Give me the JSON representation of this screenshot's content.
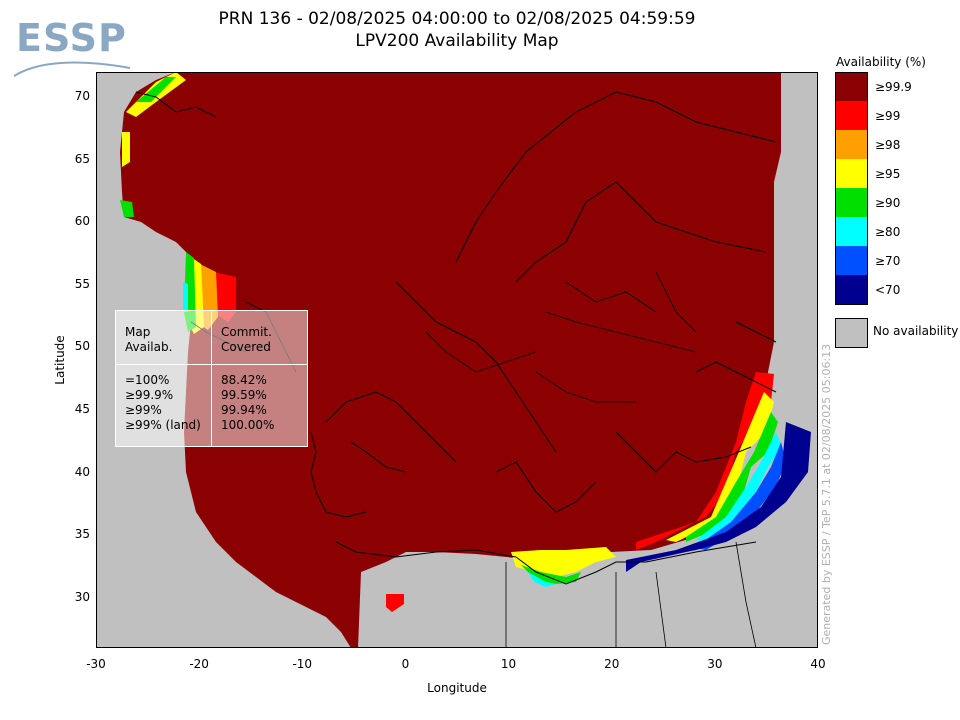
{
  "title_line1": "PRN 136 - 02/08/2025 04:00:00 to 02/08/2025 04:59:59",
  "title_line2": "LPV200 Availability Map",
  "logo_text": "ESSP",
  "axes": {
    "xlabel": "Longitude",
    "ylabel": "Latitude",
    "xticks": [
      "-30",
      "-20",
      "-10",
      "0",
      "10",
      "20",
      "30",
      "40"
    ],
    "yticks": [
      "70",
      "65",
      "60",
      "55",
      "50",
      "45",
      "40",
      "35",
      "30"
    ],
    "xlim": [
      -30,
      40
    ],
    "ylim": [
      26,
      72
    ]
  },
  "legend": {
    "title": "Availability (%)",
    "items": [
      {
        "label": "≥99.9",
        "color": "#8b0000"
      },
      {
        "label": "≥99",
        "color": "#ff0000"
      },
      {
        "label": "≥98",
        "color": "#ffa000"
      },
      {
        "label": "≥95",
        "color": "#ffff00"
      },
      {
        "label": "≥90",
        "color": "#00e000"
      },
      {
        "label": "≥80",
        "color": "#00ffff"
      },
      {
        "label": "≥70",
        "color": "#0050ff"
      },
      {
        "label": "<70",
        "color": "#000090"
      }
    ],
    "no_availability": {
      "label": "No availability",
      "color": "#c0c0c0"
    }
  },
  "stats": {
    "col1_header": "Map\nAvailab.",
    "col2_header": "Commit.\nCovered",
    "rows": [
      {
        "label": "=100%",
        "value": "88.42%"
      },
      {
        "label": "≥99.9%",
        "value": "99.59%"
      },
      {
        "label": "≥99%",
        "value": "99.94%"
      },
      {
        "label": "≥99% (land)",
        "value": "100.00%"
      }
    ]
  },
  "generated_note": "Generated by ESSP / TeP 5.7.1 at 02/08/2025 05:06:13",
  "colors": {
    "background": "#c0c0c0",
    "coast": "#000000"
  }
}
